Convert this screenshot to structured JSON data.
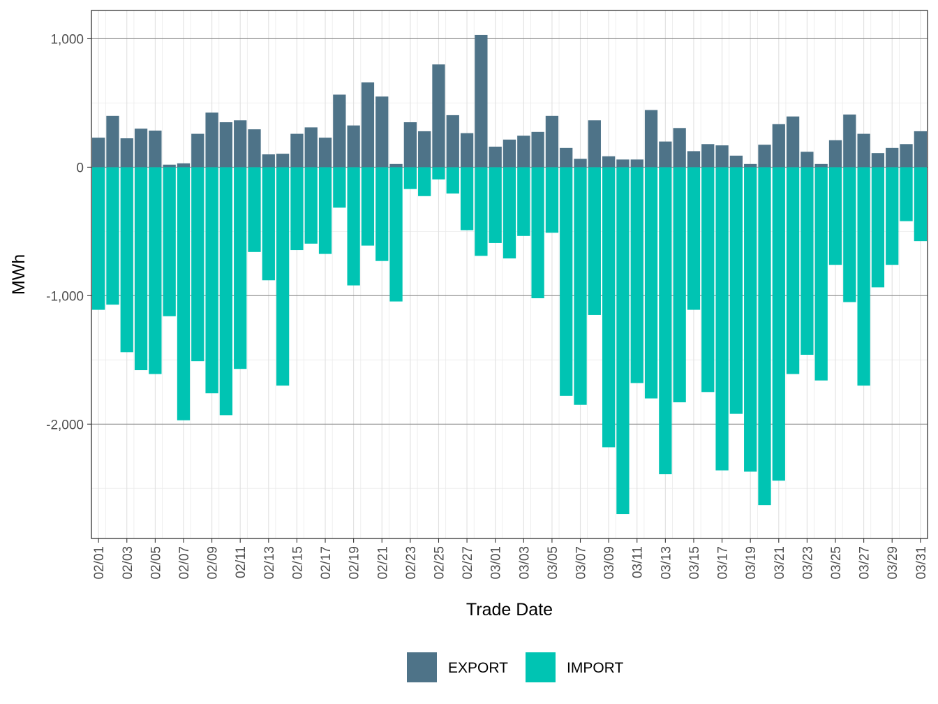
{
  "chart_data": {
    "type": "bar",
    "stacked": "diverging",
    "xlabel": "Trade Date",
    "ylabel": "MWh",
    "ylim": [
      -2890,
      1220
    ],
    "y_ticks": [
      1000,
      0,
      -1000,
      -2000
    ],
    "y_tick_labels": [
      "1,000",
      "0",
      "-1,000",
      "-2,000"
    ],
    "y_minor_ticks": [
      500,
      -500,
      -1500,
      -2500
    ],
    "grid": true,
    "legend_position": "bottom",
    "categories": [
      "02/01",
      "02/02",
      "02/03",
      "02/04",
      "02/05",
      "02/06",
      "02/07",
      "02/08",
      "02/09",
      "02/10",
      "02/11",
      "02/12",
      "02/13",
      "02/14",
      "02/15",
      "02/16",
      "02/17",
      "02/18",
      "02/19",
      "02/20",
      "02/21",
      "02/22",
      "02/23",
      "02/24",
      "02/25",
      "02/26",
      "02/27",
      "02/28",
      "03/01",
      "03/02",
      "03/03",
      "03/04",
      "03/05",
      "03/06",
      "03/07",
      "03/08",
      "03/09",
      "03/10",
      "03/11",
      "03/12",
      "03/13",
      "03/14",
      "03/15",
      "03/16",
      "03/17",
      "03/18",
      "03/19",
      "03/20",
      "03/21",
      "03/22",
      "03/23",
      "03/24",
      "03/25",
      "03/26",
      "03/27",
      "03/28",
      "03/29",
      "03/30",
      "03/31"
    ],
    "x_tick_labels": [
      "02/01",
      "02/03",
      "02/05",
      "02/07",
      "02/09",
      "02/11",
      "02/13",
      "02/15",
      "02/17",
      "02/19",
      "02/21",
      "02/23",
      "02/25",
      "02/27",
      "03/01",
      "03/03",
      "03/05",
      "03/07",
      "03/09",
      "03/11",
      "03/13",
      "03/15",
      "03/17",
      "03/19",
      "03/21",
      "03/23",
      "03/25",
      "03/27",
      "03/29",
      "03/31"
    ],
    "series": [
      {
        "name": "EXPORT",
        "color": "#4e7388",
        "values": [
          230,
          400,
          225,
          300,
          285,
          20,
          30,
          260,
          425,
          350,
          365,
          295,
          100,
          105,
          260,
          310,
          230,
          565,
          325,
          660,
          550,
          25,
          350,
          280,
          800,
          405,
          265,
          1030,
          160,
          215,
          245,
          275,
          400,
          150,
          65,
          365,
          85,
          60,
          60,
          445,
          200,
          305,
          125,
          180,
          170,
          90,
          25,
          175,
          335,
          395,
          120,
          25,
          210,
          410,
          260,
          110,
          150,
          180,
          280
        ]
      },
      {
        "name": "IMPORT",
        "color": "#00c4b3",
        "values": [
          -1110,
          -1070,
          -1440,
          -1580,
          -1610,
          -1160,
          -1970,
          -1510,
          -1760,
          -1930,
          -1570,
          -660,
          -880,
          -1700,
          -645,
          -595,
          -675,
          -315,
          -920,
          -610,
          -730,
          -1045,
          -170,
          -225,
          -95,
          -205,
          -490,
          -690,
          -590,
          -710,
          -535,
          -1020,
          -510,
          -1780,
          -1850,
          -1150,
          -2180,
          -2700,
          -1680,
          -1800,
          -2390,
          -1830,
          -1110,
          -1750,
          -2360,
          -1920,
          -2370,
          -2630,
          -2440,
          -1610,
          -1460,
          -1660,
          -760,
          -1050,
          -1700,
          -935,
          -760,
          -420,
          -575
        ]
      }
    ]
  }
}
